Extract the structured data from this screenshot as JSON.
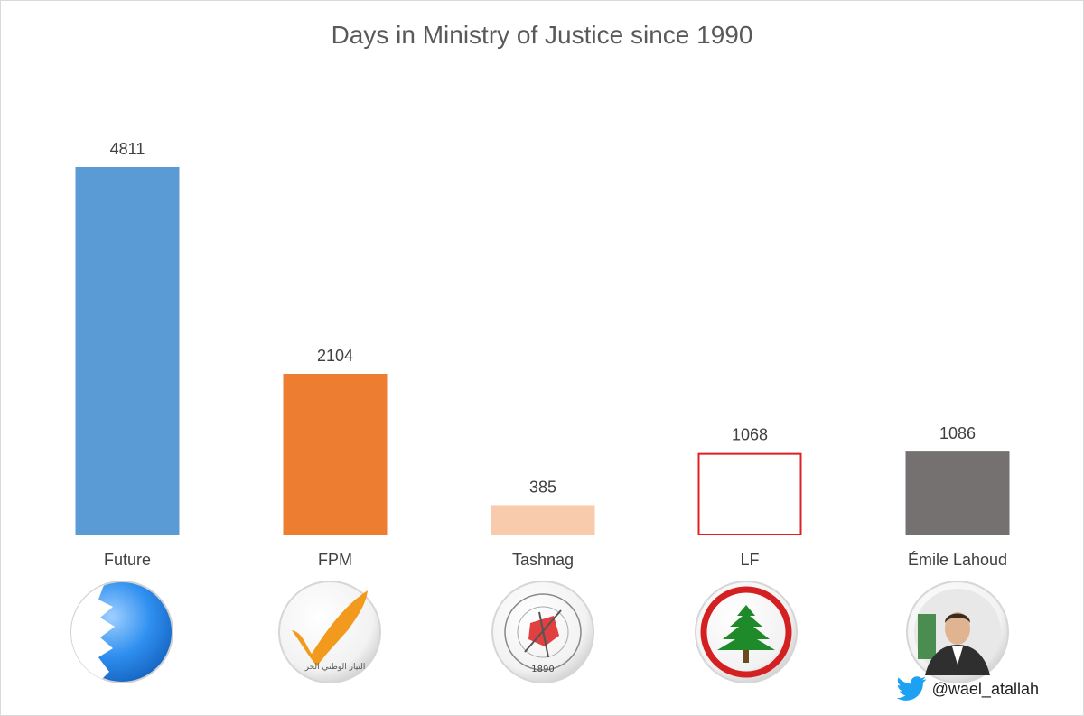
{
  "chart_data": {
    "type": "bar",
    "title": "Days in Ministry of Justice since 1990",
    "xlabel": "",
    "ylabel": "",
    "categories": [
      "Future",
      "FPM",
      "Tashnag",
      "LF",
      "Émile Lahoud"
    ],
    "values": [
      4811,
      2104,
      385,
      1068,
      1086
    ],
    "data_labels": [
      "4811",
      "2104",
      "385",
      "1068",
      "1086"
    ],
    "ylim": [
      0,
      5000
    ],
    "grid": false,
    "legend": "none",
    "colors": [
      "#5b9bd5",
      "#ed7d31",
      "#f8cbad",
      "#ffffff",
      "#767171"
    ],
    "outline_colors": [
      "none",
      "none",
      "none",
      "#e02020",
      "none"
    ]
  },
  "logos": [
    {
      "icon": "future-movement-logo-icon"
    },
    {
      "icon": "fpm-logo-icon",
      "text": "التيار الوطني الحر"
    },
    {
      "icon": "tashnag-logo-icon",
      "text": "1890"
    },
    {
      "icon": "lf-cedar-logo-icon"
    },
    {
      "icon": "emile-lahoud-portrait-icon"
    }
  ],
  "credit": {
    "icon": "twitter-bird-icon",
    "handle": "@wael_atallah",
    "icon_color": "#1da1f2"
  }
}
